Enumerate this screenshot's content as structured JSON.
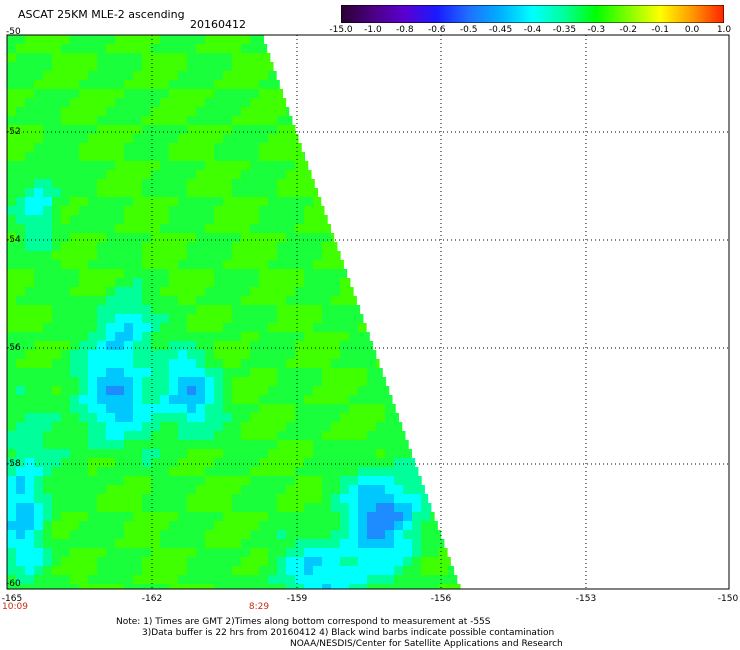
{
  "header": {
    "title": "ASCAT 25KM MLE-2 ascending",
    "date": "20160412"
  },
  "colorbar": {
    "labels": [
      "-15.0",
      "-1.0",
      "-0.8",
      "-0.6",
      "-0.5",
      "-0.45",
      "-0.4",
      "-0.35",
      "-0.3",
      "-0.2",
      "-0.1",
      "0.0",
      "1.0"
    ],
    "colors": [
      "#2b0033",
      "#4b0082",
      "#5a00d0",
      "#1a1aff",
      "#1f6fff",
      "#00b0ff",
      "#00ffff",
      "#00ff9a",
      "#00ff00",
      "#80ff00",
      "#ffff00",
      "#ff9900",
      "#ff2200"
    ]
  },
  "axes": {
    "lat_labels": [
      "-50",
      "-52",
      "-54",
      "-56",
      "-58",
      "-60"
    ],
    "lon_labels": [
      "-165",
      "-162",
      "-159",
      "-156",
      "-153",
      "-150"
    ]
  },
  "times": [
    "10:09",
    "8:29"
  ],
  "notes": {
    "line1": "Note: 1) Times are GMT 2)Times along bottom correspond to measurement at -55S",
    "line2": "3)Data buffer is 22 hrs from 20160412 4) Black wind barbs indicate possible contamination",
    "line3": "NOAA/NESDIS/Center for Satellite Applications and Research"
  }
}
